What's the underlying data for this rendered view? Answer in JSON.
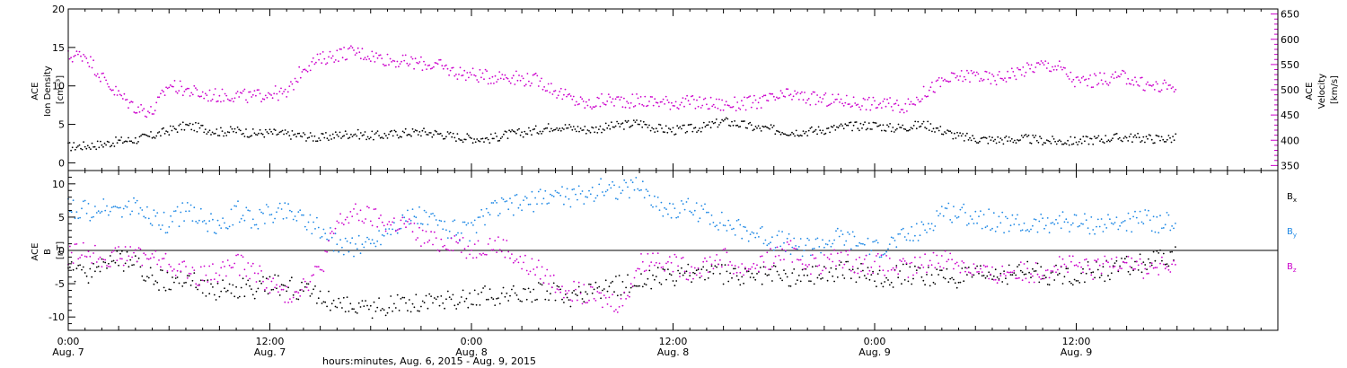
{
  "chart_data": {
    "type": "scatter",
    "xlabel": "hours:minutes, Aug. 6, 2015 - Aug. 9, 2015",
    "x_ticks": [
      {
        "hours": 0,
        "time": "0:00",
        "date": "Aug. 7"
      },
      {
        "hours": 12,
        "time": "12:00",
        "date": "Aug. 7"
      },
      {
        "hours": 24,
        "time": "0:00",
        "date": "Aug. 8"
      },
      {
        "hours": 36,
        "time": "12:00",
        "date": "Aug. 8"
      },
      {
        "hours": 48,
        "time": "0:00",
        "date": "Aug. 9"
      },
      {
        "hours": 60,
        "time": "12:00",
        "date": "Aug. 9"
      }
    ],
    "xlim": [
      0,
      72
    ],
    "panels": [
      {
        "id": "plasma",
        "ylabel_lines": [
          "ACE",
          "Ion Density",
          "[cm⁻³]"
        ],
        "ylim": [
          -1,
          20
        ],
        "yticks": [
          0,
          5,
          10,
          15,
          20
        ],
        "right_axis": {
          "ylabel_lines": [
            "ACE",
            "Velocity",
            "[km/s]"
          ],
          "ylim": [
            340,
            660
          ],
          "yticks": [
            350,
            400,
            450,
            500,
            550,
            600,
            650
          ],
          "color": "#cc00cc"
        },
        "series": [
          {
            "name": "Ion Density",
            "color": "#000000",
            "axis": "left",
            "x": [
              0,
              1,
              2,
              3,
              4,
              5,
              6,
              7,
              8,
              9,
              10,
              11,
              12,
              13,
              14,
              15,
              16,
              17,
              18,
              19,
              20,
              21,
              22,
              23,
              24,
              25,
              26,
              27,
              28,
              29,
              30,
              31,
              32,
              33,
              34,
              35,
              36,
              37,
              38,
              39,
              40,
              41,
              42,
              43,
              44,
              45,
              46,
              47,
              48,
              49,
              50,
              51,
              52,
              53,
              54,
              55,
              56,
              57,
              58,
              59,
              60,
              61,
              62,
              63,
              64,
              65,
              66
            ],
            "y": [
              2.1,
              2.2,
              2.4,
              2.8,
              3,
              3.5,
              4.2,
              4.8,
              4.5,
              4,
              4.2,
              3.8,
              3.9,
              3.7,
              3.5,
              3.2,
              3.6,
              3.8,
              3.5,
              3.6,
              3.9,
              4,
              3.8,
              3.4,
              3.2,
              3.1,
              3.6,
              3.9,
              4.3,
              4.8,
              4.5,
              4.3,
              4.6,
              4.9,
              5.2,
              4.5,
              4.2,
              4.4,
              4.7,
              5.4,
              5,
              4.5,
              4.3,
              4,
              4.1,
              4.3,
              4.6,
              4.8,
              4.9,
              4.5,
              4.7,
              5,
              4.2,
              3.4,
              3.1,
              3,
              3,
              3.1,
              2.9,
              2.8,
              2.8,
              3,
              3.2,
              3.3,
              3.2,
              3.1,
              3.2
            ]
          },
          {
            "name": "Velocity",
            "color": "#cc00cc",
            "axis": "right",
            "x": [
              0,
              1,
              2,
              3,
              4,
              5,
              6,
              7,
              8,
              9,
              10,
              11,
              12,
              13,
              14,
              15,
              16,
              17,
              18,
              19,
              20,
              21,
              22,
              23,
              24,
              25,
              26,
              27,
              28,
              29,
              30,
              31,
              32,
              33,
              34,
              35,
              36,
              37,
              38,
              39,
              40,
              41,
              42,
              43,
              44,
              45,
              46,
              47,
              48,
              49,
              50,
              51,
              52,
              53,
              54,
              55,
              56,
              57,
              58,
              59,
              60,
              61,
              62,
              63,
              64,
              65,
              66
            ],
            "y": [
              565,
              570,
              525,
              490,
              465,
              455,
              510,
              500,
              490,
              488,
              490,
              485,
              495,
              490,
              545,
              560,
              570,
              575,
              568,
              560,
              555,
              552,
              548,
              535,
              530,
              525,
              528,
              522,
              518,
              498,
              480,
              470,
              480,
              478,
              478,
              476,
              475,
              475,
              473,
              470,
              472,
              475,
              482,
              490,
              483,
              480,
              478,
              475,
              472,
              470,
              468,
              495,
              515,
              525,
              530,
              520,
              530,
              540,
              550,
              545,
              515,
              518,
              522,
              525,
              510,
              505,
              510
            ]
          }
        ]
      },
      {
        "id": "magnetic",
        "ylabel_lines": [
          "ACE",
          "B",
          "[nT]"
        ],
        "ylim": [
          -12,
          12
        ],
        "yticks": [
          -10,
          -5,
          0,
          5,
          10
        ],
        "zero_line": true,
        "series": [
          {
            "name": "Bx",
            "label_main": "B",
            "label_sub": "x",
            "color": "#000000",
            "x": [
              0,
              1,
              2,
              3,
              4,
              5,
              6,
              7,
              8,
              9,
              10,
              11,
              12,
              13,
              14,
              15,
              16,
              17,
              18,
              19,
              20,
              21,
              22,
              23,
              24,
              25,
              26,
              27,
              28,
              29,
              30,
              31,
              32,
              33,
              34,
              35,
              36,
              37,
              38,
              39,
              40,
              41,
              42,
              43,
              44,
              45,
              46,
              47,
              48,
              49,
              50,
              51,
              52,
              53,
              54,
              55,
              56,
              57,
              58,
              59,
              60,
              61,
              62,
              63,
              64,
              65,
              66
            ],
            "y": [
              -3,
              -4,
              -2,
              -1.5,
              -2,
              -4,
              -5,
              -4,
              -5.5,
              -6,
              -5.5,
              -6,
              -5,
              -5.5,
              -6,
              -7,
              -8,
              -8.5,
              -9,
              -8.5,
              -8,
              -7.8,
              -7.5,
              -7.5,
              -7.2,
              -6.8,
              -7,
              -6.5,
              -6,
              -6.5,
              -7,
              -6.5,
              -6,
              -5,
              -4.5,
              -4,
              -4.5,
              -3.5,
              -3,
              -3.5,
              -4,
              -3.8,
              -3.5,
              -4,
              -3.6,
              -3.2,
              -3,
              -3.5,
              -3.8,
              -4,
              -3.5,
              -3.8,
              -4,
              -4.2,
              -4,
              -3.6,
              -3.5,
              -3.2,
              -3.5,
              -3.8,
              -3.6,
              -3.2,
              -3,
              -2.5,
              -2,
              -1.5,
              -1
            ]
          },
          {
            "name": "By",
            "label_main": "B",
            "label_sub": "y",
            "color": "#1e88e5",
            "x": [
              0,
              1,
              2,
              3,
              4,
              5,
              6,
              7,
              8,
              9,
              10,
              11,
              12,
              13,
              14,
              15,
              16,
              17,
              18,
              19,
              20,
              21,
              22,
              23,
              24,
              25,
              26,
              27,
              28,
              29,
              30,
              31,
              32,
              33,
              34,
              35,
              36,
              37,
              38,
              39,
              40,
              41,
              42,
              43,
              44,
              45,
              46,
              47,
              48,
              49,
              50,
              51,
              52,
              53,
              54,
              55,
              56,
              57,
              58,
              59,
              60,
              61,
              62,
              63,
              64,
              65,
              66
            ],
            "y": [
              6.5,
              6,
              6.2,
              6,
              6.3,
              5,
              4,
              6,
              5,
              3,
              6,
              4.5,
              5.5,
              6,
              5,
              3,
              1,
              0.5,
              1,
              3,
              4.5,
              5,
              4,
              3,
              3,
              6,
              6.5,
              7,
              7.5,
              8.5,
              8,
              8.5,
              9.5,
              9,
              9.8,
              7,
              6,
              6.2,
              5.5,
              4,
              3,
              2.5,
              1.5,
              1,
              0.5,
              1,
              2,
              1,
              0,
              1,
              2,
              3,
              6,
              5.5,
              5,
              4.5,
              4,
              3.5,
              4,
              4.5,
              4,
              3.8,
              4,
              4.2,
              4.5,
              4.2,
              4.5
            ]
          },
          {
            "name": "Bz",
            "label_main": "B",
            "label_sub": "z",
            "color": "#cc00cc",
            "x": [
              0,
              1,
              2,
              3,
              4,
              5,
              6,
              7,
              8,
              9,
              10,
              11,
              12,
              13,
              14,
              15,
              16,
              17,
              18,
              19,
              20,
              21,
              22,
              23,
              24,
              25,
              26,
              27,
              28,
              29,
              30,
              31,
              32,
              33,
              34,
              35,
              36,
              37,
              38,
              39,
              40,
              41,
              42,
              43,
              44,
              45,
              46,
              47,
              48,
              49,
              50,
              51,
              52,
              53,
              54,
              55,
              56,
              57,
              58,
              59,
              60,
              61,
              62,
              63,
              64,
              65,
              66
            ],
            "y": [
              -1,
              0,
              -1,
              -1,
              -0.5,
              -1,
              -2,
              -3,
              -4,
              -3,
              -2,
              -3,
              -5,
              -7,
              -5,
              -3,
              4,
              5.5,
              5,
              4,
              4,
              2,
              1,
              1.5,
              0,
              1,
              0.5,
              -2,
              -3,
              -5,
              -6,
              -7,
              -7.5,
              -8,
              -2,
              -1,
              -2,
              -3,
              -2,
              -1,
              -3,
              -2,
              -1,
              0,
              -2,
              -2,
              -1,
              -2,
              -2,
              -2.5,
              -3,
              -2,
              -1,
              -2,
              -3,
              -4,
              -3,
              -3.5,
              -3,
              -2,
              -2.5,
              -3,
              -2,
              -1,
              -3,
              -2.5,
              -3
            ]
          }
        ]
      }
    ]
  }
}
